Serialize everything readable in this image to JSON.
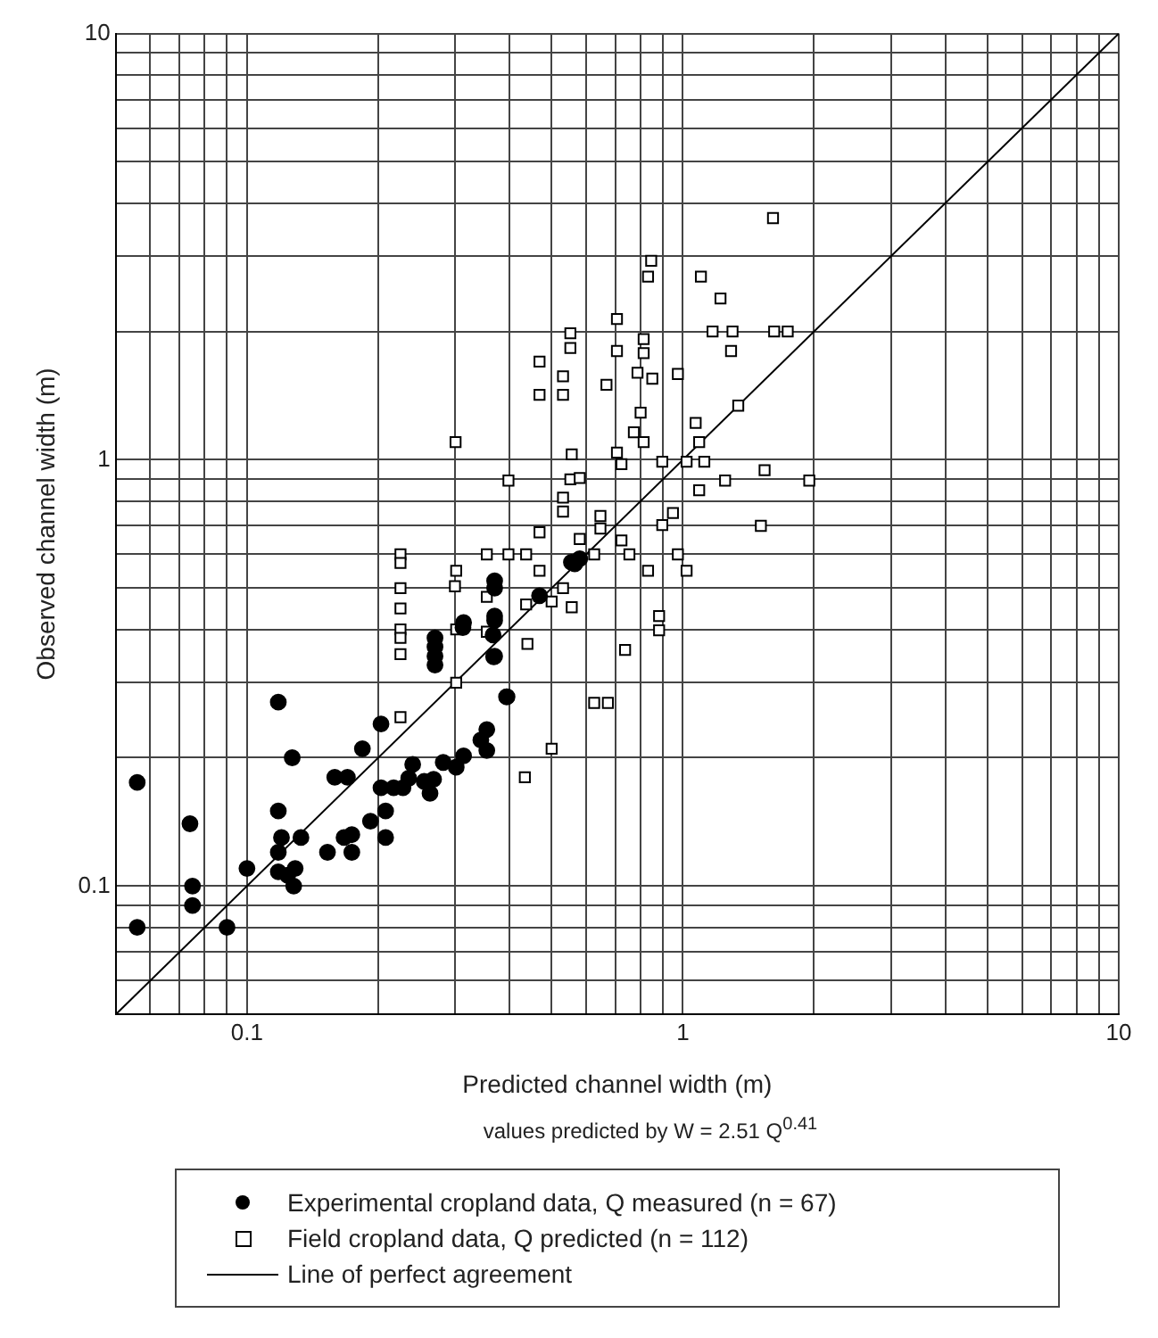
{
  "chart_data": {
    "type": "scatter",
    "xlabel": "Predicted channel width (m)",
    "ylabel": "Observed channel width (m)",
    "annotations": [
      "values predicted by W = 2.51 Q$^{0.41}$"
    ],
    "log": "xy",
    "grid": true,
    "legend": "bottom",
    "xlim": [
      0.05,
      10
    ],
    "ylim": [
      0.05,
      10
    ],
    "xticks": [
      {
        "value": 0.05,
        "label": null
      },
      {
        "value": 0.06,
        "label": null
      },
      {
        "value": 0.07,
        "label": null
      },
      {
        "value": 0.08,
        "label": null
      },
      {
        "value": 0.09,
        "label": null
      },
      0.1,
      {
        "value": 0.2,
        "label": null
      },
      {
        "value": 0.3,
        "label": null
      },
      {
        "value": 0.4,
        "label": null
      },
      {
        "value": 0.5,
        "label": null
      },
      {
        "value": 0.6,
        "label": null
      },
      {
        "value": 0.7,
        "label": null
      },
      {
        "value": 0.8,
        "label": null
      },
      {
        "value": 0.9,
        "label": null
      },
      1,
      {
        "value": 2,
        "label": null
      },
      {
        "value": 3,
        "label": null
      },
      {
        "value": 4,
        "label": null
      },
      {
        "value": 5,
        "label": null
      },
      {
        "value": 6,
        "label": null
      },
      {
        "value": 7,
        "label": null
      },
      {
        "value": 8,
        "label": null
      },
      {
        "value": 9,
        "label": null
      },
      10
    ],
    "yticks": [
      {
        "value": 0.05,
        "label": null
      },
      {
        "value": 0.06,
        "label": null
      },
      {
        "value": 0.07,
        "label": null
      },
      {
        "value": 0.08,
        "label": null
      },
      {
        "value": 0.09,
        "label": null
      },
      0.1,
      {
        "value": 0.2,
        "label": null
      },
      {
        "value": 0.3,
        "label": null
      },
      {
        "value": 0.4,
        "label": null
      },
      {
        "value": 0.5,
        "label": null
      },
      {
        "value": 0.6,
        "label": null
      },
      {
        "value": 0.7,
        "label": null
      },
      {
        "value": 0.8,
        "label": null
      },
      {
        "value": 0.9,
        "label": null
      },
      1,
      {
        "value": 2,
        "label": null
      },
      {
        "value": 3,
        "label": null
      },
      {
        "value": 4,
        "label": null
      },
      {
        "value": 5,
        "label": null
      },
      {
        "value": 6,
        "label": null
      },
      {
        "value": 7,
        "label": null
      },
      {
        "value": 8,
        "label": null
      },
      {
        "value": 9,
        "label": null
      },
      10
    ],
    "series": [
      {
        "name": "Experimental cropland data, Q measured (n = 67)",
        "type": "scatter",
        "marker": "circle",
        "color": "#000000",
        "x": [
          0.056,
          0.074,
          0.075,
          0.075,
          0.056,
          0.09,
          0.1,
          0.118,
          0.127,
          0.118,
          0.12,
          0.133,
          0.118,
          0.118,
          0.124,
          0.129,
          0.128,
          0.153,
          0.167,
          0.174,
          0.174,
          0.192,
          0.208,
          0.208,
          0.184,
          0.203,
          0.159,
          0.17,
          0.203,
          0.217,
          0.228,
          0.235,
          0.24,
          0.255,
          0.263,
          0.268,
          0.282,
          0.302,
          0.314,
          0.344,
          0.355,
          0.355,
          0.394,
          0.368,
          0.27,
          0.27,
          0.27,
          0.27,
          0.313,
          0.37,
          0.555,
          0.565,
          0.58,
          0.37,
          0.37,
          0.37,
          0.469,
          0.314,
          0.367,
          0.37,
          0.395
        ],
        "values": [
          0.175,
          0.14,
          0.1,
          0.09,
          0.08,
          0.08,
          0.11,
          0.27,
          0.2,
          0.15,
          0.13,
          0.13,
          0.12,
          0.108,
          0.106,
          0.11,
          0.1,
          0.12,
          0.13,
          0.132,
          0.12,
          0.142,
          0.15,
          0.13,
          0.21,
          0.24,
          0.18,
          0.18,
          0.17,
          0.17,
          0.17,
          0.179,
          0.193,
          0.176,
          0.165,
          0.178,
          0.195,
          0.19,
          0.202,
          0.22,
          0.233,
          0.208,
          0.278,
          0.345,
          0.364,
          0.346,
          0.33,
          0.382,
          0.404,
          0.43,
          0.575,
          0.57,
          0.586,
          0.52,
          0.5,
          0.42,
          0.48,
          0.415,
          0.388,
          0.346,
          0.278
        ]
      },
      {
        "name": "Field cropland data, Q predicted (n = 112)",
        "type": "scatter",
        "marker": "square",
        "color": "#000000",
        "x": [
          1.61,
          0.846,
          0.832,
          1.1,
          1.22,
          0.706,
          0.552,
          1.17,
          1.3,
          1.62,
          1.74,
          0.552,
          0.706,
          0.813,
          0.813,
          1.29,
          0.469,
          0.531,
          0.469,
          0.531,
          0.668,
          0.787,
          0.851,
          0.974,
          0.8,
          0.772,
          0.813,
          1.07,
          1.09,
          1.34,
          0.301,
          0.556,
          0.706,
          0.723,
          0.897,
          1.02,
          1.12,
          1.54,
          0.398,
          0.552,
          0.58,
          1.25,
          1.95,
          1.09,
          0.531,
          0.531,
          0.949,
          0.897,
          1.51,
          0.469,
          0.647,
          0.647,
          0.58,
          0.723,
          0.225,
          0.355,
          0.398,
          0.437,
          0.626,
          0.754,
          0.974,
          0.225,
          0.302,
          0.469,
          0.832,
          1.02,
          0.225,
          0.3,
          0.531,
          0.355,
          0.437,
          0.5,
          0.556,
          0.225,
          0.225,
          0.225,
          0.225,
          0.302,
          0.355,
          0.882,
          0.882,
          0.44,
          0.737,
          0.302,
          0.225,
          0.626,
          0.673,
          0.434,
          0.5
        ],
        "values": [
          3.69,
          2.93,
          2.69,
          2.69,
          2.39,
          2.14,
          1.98,
          2.0,
          2.0,
          2.0,
          2.0,
          1.83,
          1.8,
          1.92,
          1.78,
          1.8,
          1.7,
          1.57,
          1.42,
          1.42,
          1.5,
          1.6,
          1.55,
          1.59,
          1.29,
          1.16,
          1.1,
          1.22,
          1.1,
          1.34,
          1.1,
          1.03,
          1.04,
          0.977,
          0.99,
          0.99,
          0.99,
          0.945,
          0.894,
          0.9,
          0.906,
          0.894,
          0.894,
          0.848,
          0.815,
          0.756,
          0.75,
          0.703,
          0.7,
          0.676,
          0.738,
          0.69,
          0.652,
          0.647,
          0.6,
          0.6,
          0.6,
          0.6,
          0.6,
          0.6,
          0.6,
          0.573,
          0.549,
          0.549,
          0.549,
          0.549,
          0.5,
          0.505,
          0.5,
          0.477,
          0.458,
          0.465,
          0.451,
          0.448,
          0.4,
          0.382,
          0.35,
          0.4,
          0.395,
          0.43,
          0.398,
          0.37,
          0.358,
          0.3,
          0.249,
          0.269,
          0.269,
          0.18,
          0.21
        ]
      },
      {
        "name": "Line of perfect agreement",
        "type": "line",
        "marker": "none",
        "line_style": "solid",
        "color": "#000000",
        "x": [
          0.05,
          10
        ],
        "values": [
          0.05,
          10
        ]
      }
    ]
  }
}
